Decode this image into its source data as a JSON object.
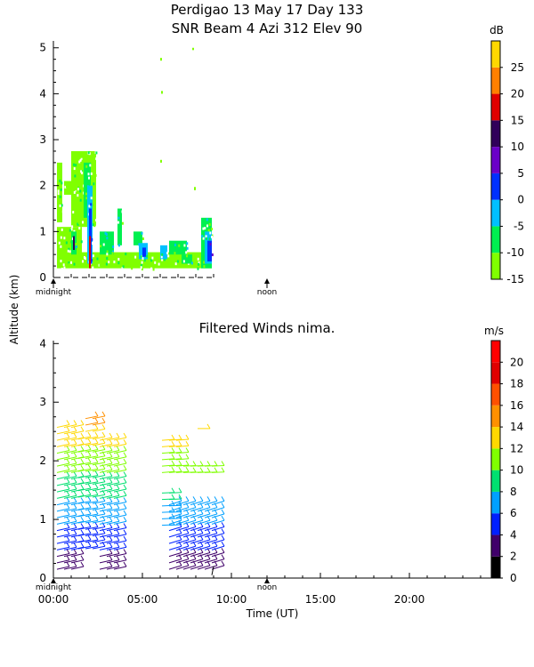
{
  "title_line1": "Perdigao  13 May 17 Day 133",
  "title_line2": "SNR Beam 4 Azi 312 Elev 90",
  "ylabel": "Altitude (km)",
  "xlabel": "Time (UT)",
  "marker_midnight": "midnight",
  "marker_noon": "noon",
  "chart_data": [
    {
      "type": "heatmap",
      "x_range_hours": [
        0,
        24
      ],
      "ylim": [
        0,
        5.15
      ],
      "yticks": [
        0,
        1,
        2,
        3,
        4,
        5
      ],
      "colorbar": {
        "unit": "dB",
        "range": [
          -15,
          30
        ],
        "ticks": [
          -15,
          -10,
          -5,
          0,
          5,
          10,
          15,
          20,
          25
        ],
        "colors": [
          "#80ff00",
          "#00f050",
          "#00c0ff",
          "#0030ff",
          "#6a00c8",
          "#30005a",
          "#e00000",
          "#ff8000",
          "#ffd800"
        ]
      },
      "coverage_hours": [
        0.1,
        8.9
      ],
      "cells": [
        {
          "t0": 0.2,
          "t1": 1.6,
          "h0": 0.2,
          "h1": 1.1,
          "c": 0
        },
        {
          "t0": 1.6,
          "t1": 8.9,
          "h0": 0.2,
          "h1": 0.55,
          "c": 0
        },
        {
          "t0": 0.2,
          "t1": 0.5,
          "h0": 1.2,
          "h1": 2.5,
          "c": 0
        },
        {
          "t0": 1.0,
          "t1": 2.4,
          "h0": 1.1,
          "h1": 2.75,
          "c": 0
        },
        {
          "t0": 0.6,
          "t1": 1.3,
          "h0": 1.8,
          "h1": 2.1,
          "c": 0
        },
        {
          "t0": 1.7,
          "t1": 2.1,
          "h0": 1.3,
          "h1": 2.5,
          "c": 1
        },
        {
          "t0": 1.9,
          "t1": 2.2,
          "h0": 0.3,
          "h1": 2.0,
          "c": 2
        },
        {
          "t0": 2.0,
          "t1": 2.15,
          "h0": 0.3,
          "h1": 1.5,
          "c": 3
        },
        {
          "t0": 2.0,
          "t1": 2.1,
          "h0": 0.2,
          "h1": 0.9,
          "c": 6
        },
        {
          "t0": 1.0,
          "t1": 1.3,
          "h0": 0.5,
          "h1": 1.0,
          "c": 1
        },
        {
          "t0": 1.1,
          "t1": 1.2,
          "h0": 0.6,
          "h1": 0.9,
          "c": 5
        },
        {
          "t0": 2.6,
          "t1": 3.4,
          "h0": 0.5,
          "h1": 1.0,
          "c": 1
        },
        {
          "t0": 3.6,
          "t1": 3.85,
          "h0": 0.7,
          "h1": 1.5,
          "c": 1
        },
        {
          "t0": 4.5,
          "t1": 5.0,
          "h0": 0.7,
          "h1": 1.0,
          "c": 1
        },
        {
          "t0": 4.8,
          "t1": 5.3,
          "h0": 0.4,
          "h1": 0.75,
          "c": 2
        },
        {
          "t0": 5.0,
          "t1": 5.2,
          "h0": 0.45,
          "h1": 0.65,
          "c": 3
        },
        {
          "t0": 6.0,
          "t1": 6.4,
          "h0": 0.4,
          "h1": 0.7,
          "c": 2
        },
        {
          "t0": 7.2,
          "t1": 7.8,
          "h0": 0.3,
          "h1": 0.5,
          "c": 1
        },
        {
          "t0": 6.5,
          "t1": 7.5,
          "h0": 0.5,
          "h1": 0.8,
          "c": 1
        },
        {
          "t0": 8.3,
          "t1": 8.9,
          "h0": 0.2,
          "h1": 1.3,
          "c": 1
        },
        {
          "t0": 8.5,
          "t1": 8.9,
          "h0": 0.3,
          "h1": 1.0,
          "c": 2
        },
        {
          "t0": 8.65,
          "t1": 8.9,
          "h0": 0.35,
          "h1": 0.8,
          "c": 3
        },
        {
          "t0": 6.0,
          "t1": 6.1,
          "h0": 4.72,
          "h1": 4.78,
          "c": 0
        },
        {
          "t0": 6.05,
          "t1": 6.15,
          "h0": 4.0,
          "h1": 4.06,
          "c": 0
        },
        {
          "t0": 6.0,
          "t1": 6.1,
          "h0": 2.5,
          "h1": 2.56,
          "c": 0
        },
        {
          "t0": 7.8,
          "t1": 7.9,
          "h0": 4.95,
          "h1": 5.0,
          "c": 0
        },
        {
          "t0": 7.9,
          "t1": 8.0,
          "h0": 1.9,
          "h1": 1.97,
          "c": 0
        }
      ]
    },
    {
      "type": "scatter",
      "title": "Filtered Winds nima.",
      "x_range_hours": [
        0,
        24
      ],
      "xticks": [
        "00:00",
        "05:00",
        "10:00",
        "15:00",
        "20:00"
      ],
      "xtick_hours": [
        0,
        5,
        10,
        15,
        20
      ],
      "ylim": [
        0,
        4.05
      ],
      "yticks": [
        0,
        1,
        2,
        3,
        4
      ],
      "colorbar": {
        "unit": "m/s",
        "range": [
          0,
          22
        ],
        "ticks": [
          0,
          2,
          4,
          6,
          8,
          10,
          12,
          14,
          16,
          18,
          20
        ],
        "colors": [
          "#000000",
          "#40006a",
          "#0020ff",
          "#00a0ff",
          "#00e070",
          "#80ff00",
          "#ffd800",
          "#ff9000",
          "#ff5000",
          "#e00000",
          "#ff0000"
        ]
      },
      "barb_columns_hours": [
        0.2,
        0.6,
        1.0,
        1.4,
        1.8,
        2.2,
        2.6,
        3.0,
        3.4,
        6.1,
        6.5,
        6.9,
        7.3,
        7.7,
        8.1,
        8.5,
        8.9
      ],
      "barb_groups": [
        {
          "t0": 0.1,
          "t1": 1.0,
          "h0": 0.15,
          "h1": 2.6,
          "slope": 0.22
        },
        {
          "t0": 1.1,
          "t1": 2.2,
          "h0": 0.5,
          "h1": 2.45,
          "slope": 0.2
        },
        {
          "t0": 1.6,
          "t1": 2.2,
          "h0": 2.5,
          "h1": 2.72,
          "slope": 0.2
        },
        {
          "t0": 2.3,
          "t1": 3.5,
          "h0": 0.15,
          "h1": 2.45,
          "slope": 0.22
        },
        {
          "t0": 5.8,
          "t1": 6.8,
          "h0": 0.9,
          "h1": 1.45,
          "slope": 0.05
        },
        {
          "t0": 6.0,
          "t1": 7.0,
          "h0": 1.8,
          "h1": 2.35,
          "slope": 0.08
        },
        {
          "t0": 6.3,
          "t1": 8.9,
          "h0": 0.15,
          "h1": 1.3,
          "slope": 0.3
        },
        {
          "t0": 7.0,
          "t1": 8.9,
          "h0": 1.8,
          "h1": 1.95,
          "slope": 0.04
        },
        {
          "t0": 7.8,
          "t1": 8.3,
          "h0": 2.55,
          "h1": 2.6,
          "slope": 0.0
        }
      ]
    }
  ]
}
